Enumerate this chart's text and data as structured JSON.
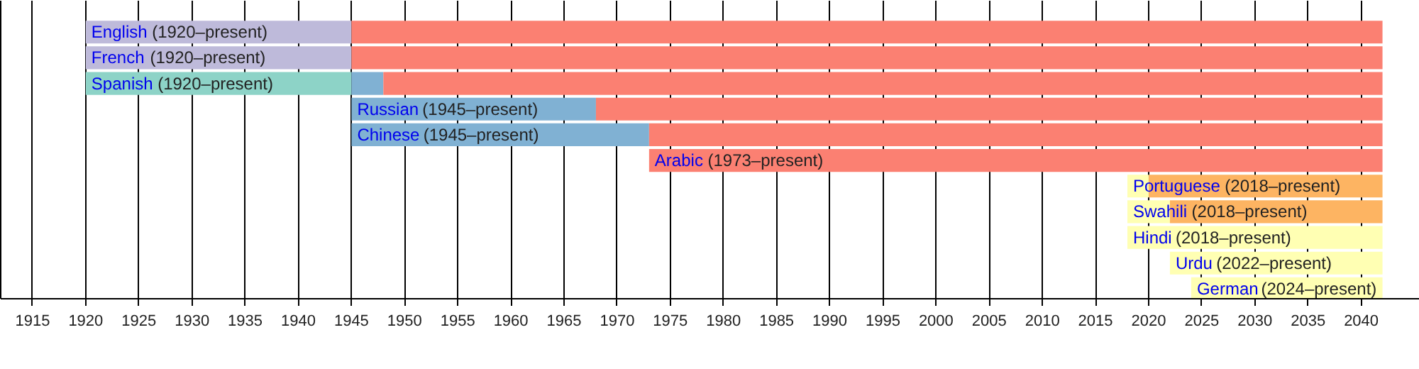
{
  "chart_data": {
    "type": "bar",
    "orientation": "horizontal",
    "categories": [
      "English",
      "French",
      "Spanish",
      "Russian",
      "Chinese",
      "Arabic",
      "Portuguese",
      "Swahili",
      "Hindi",
      "Urdu",
      "German"
    ],
    "series": [
      {
        "color": "#bebada",
        "base": [
          1920,
          1920,
          null,
          null,
          null,
          null,
          null,
          null,
          null,
          null,
          null
        ],
        "values": [
          25,
          25,
          null,
          null,
          null,
          null,
          null,
          null,
          null,
          null,
          null
        ]
      },
      {
        "color": "#8dd3c7",
        "base": [
          null,
          null,
          1920,
          null,
          null,
          null,
          null,
          null,
          null,
          null,
          null
        ],
        "values": [
          null,
          null,
          25,
          null,
          null,
          null,
          null,
          null,
          null,
          null,
          null
        ]
      },
      {
        "color": "#80b1d3",
        "base": [
          null,
          null,
          1945,
          1945,
          1945,
          null,
          null,
          null,
          null,
          null,
          null
        ],
        "values": [
          null,
          null,
          3,
          23,
          28,
          null,
          null,
          null,
          null,
          null,
          null
        ]
      },
      {
        "color": "#fb8072",
        "base": [
          1945,
          1945,
          1948,
          1968,
          1973,
          1973,
          null,
          null,
          null,
          null,
          null
        ],
        "values": [
          97,
          97,
          94,
          74,
          69,
          69,
          null,
          null,
          null,
          null,
          null
        ]
      },
      {
        "color": "#ffffb3",
        "base": [
          null,
          null,
          null,
          null,
          null,
          null,
          2018,
          2018,
          2018,
          2022,
          2024
        ],
        "values": [
          null,
          null,
          null,
          null,
          null,
          null,
          2,
          4,
          24,
          20,
          18
        ]
      },
      {
        "color": "#fdb462",
        "base": [
          null,
          null,
          null,
          null,
          null,
          null,
          2020,
          2022,
          null,
          null,
          null
        ],
        "values": [
          null,
          null,
          null,
          null,
          null,
          null,
          22,
          20,
          null,
          null,
          null
        ]
      }
    ],
    "annotations": [
      "(1920–present)",
      "(1920–present)",
      "(1920–present)",
      "(1945–present)",
      "(1945–present)",
      "(1973–present)",
      "(2018–present)",
      "(2018–present)",
      "(2018–present)",
      "(2022–present)",
      "(2024–present)"
    ],
    "xlim": [
      1912,
      2045.5
    ],
    "xticks": [
      1915,
      1920,
      1925,
      1930,
      1935,
      1940,
      1945,
      1950,
      1955,
      1960,
      1965,
      1970,
      1975,
      1980,
      1985,
      1990,
      1995,
      2000,
      2005,
      2010,
      2015,
      2020,
      2025,
      2030,
      2035,
      2040
    ],
    "grid": "x",
    "tick_labels": "x"
  }
}
